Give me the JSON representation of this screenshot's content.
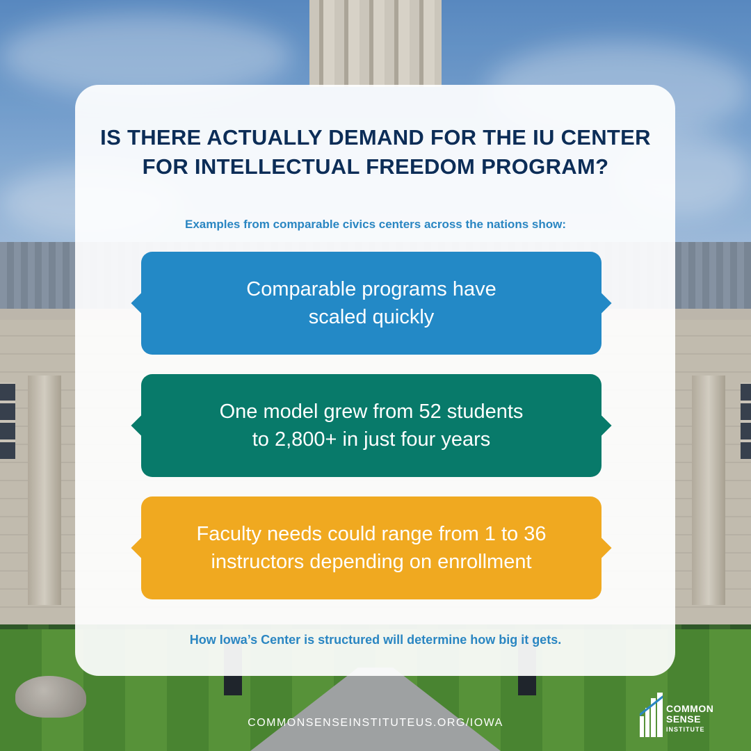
{
  "heading": {
    "line1": "IS THERE ACTUALLY DEMAND FOR THE IU CENTER",
    "line2": "FOR INTELLECTUAL FREEDOM PROGRAM?"
  },
  "subtitle": "Examples from comparable civics centers across the nations show:",
  "points": [
    {
      "line1": "Comparable programs have",
      "line2": "scaled quickly",
      "color": "#2389c6"
    },
    {
      "line1": "One model grew from 52 students",
      "line2": "to 2,800+ in just four years",
      "color": "#087a6a"
    },
    {
      "line1": "Faculty needs could range from 1 to 36",
      "line2": "instructors depending on enrollment",
      "color": "#f0a920"
    }
  ],
  "closing": "How Iowa’s Center is structured will determine how big it gets.",
  "footer": {
    "url": "COMMONSENSEINSTITUTEUS.ORG/IOWA",
    "logo_line1": "COMMON",
    "logo_line2": "SENSE",
    "logo_line3": "INSTITUTE"
  },
  "colors": {
    "title": "#0c2d57",
    "accent_text": "#2a86c2"
  }
}
